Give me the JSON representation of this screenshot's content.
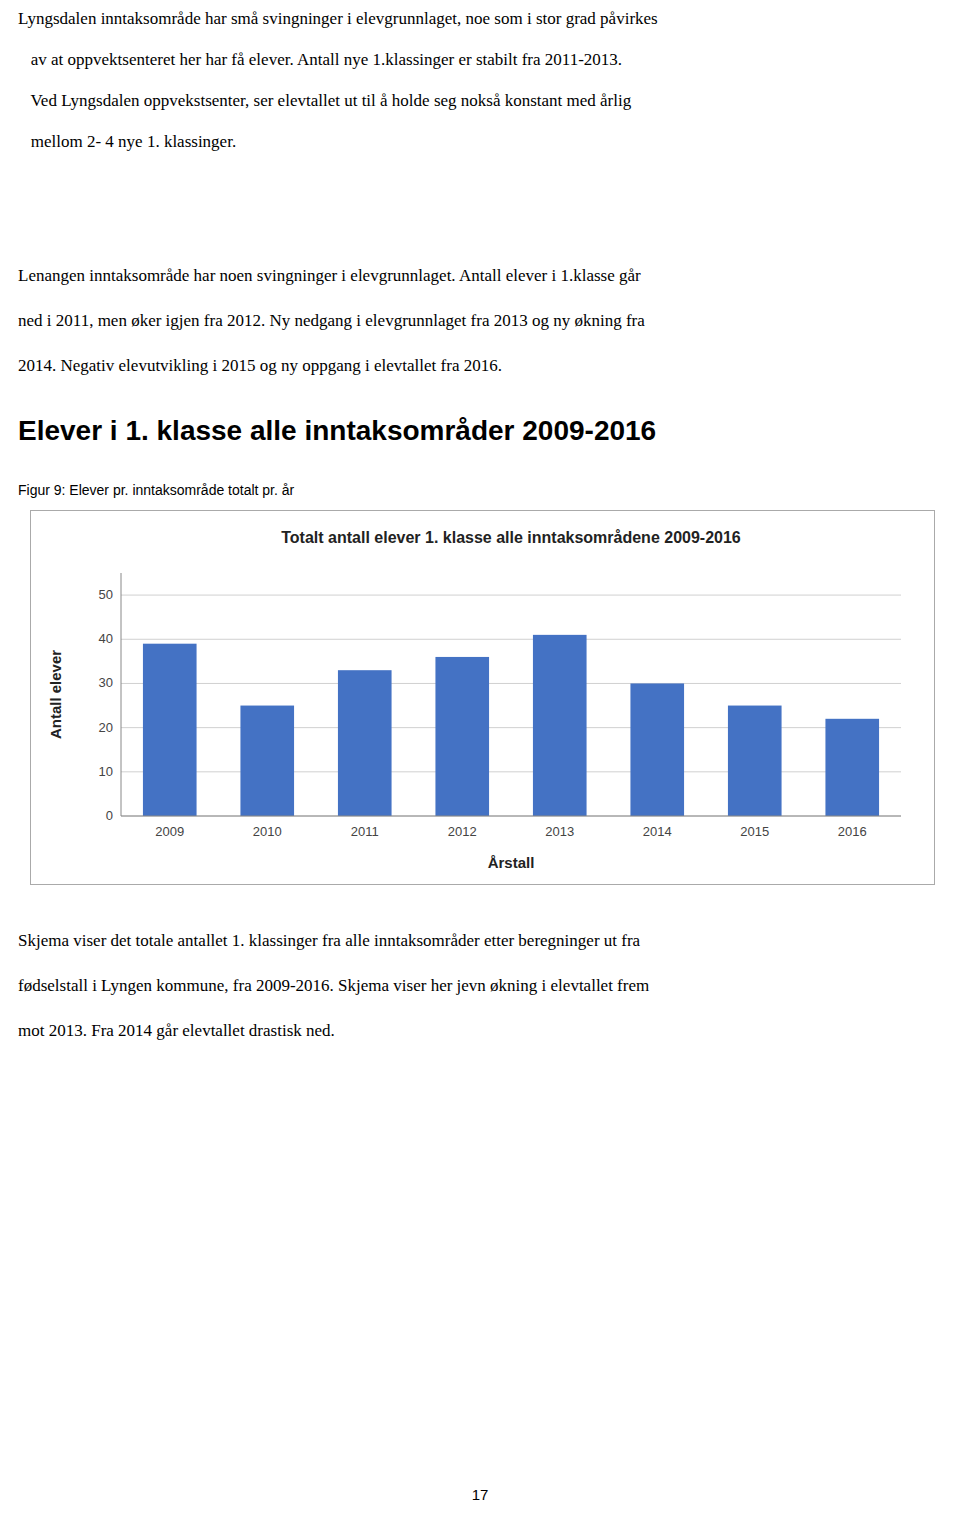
{
  "top_paragraphs": [
    [
      "Lyngsdalen inntaksområde har små svingninger i elevgrunnlaget, noe som i stor grad påvirkes",
      "   av at oppvektsenteret her har få elever. Antall nye 1.klassinger er stabilt fra 2011-2013.",
      "   Ved Lyngsdalen oppvekstsenter, ser elevtallet ut til å holde seg nokså konstant med årlig",
      "   mellom 2- 4 nye 1. klassinger."
    ],
    [
      "Lenangen inntaksområde har noen svingninger i elevgrunnlaget. Antall elever i 1.klasse går",
      "ned i 2011, men øker igjen fra 2012. Ny nedgang i elevgrunnlaget fra 2013 og ny økning fra",
      "2014. Negativ elevutvikling i 2015 og ny oppgang i elevtallet fra 2016."
    ]
  ],
  "heading": "Elever i 1. klasse alle inntaksområder 2009-2016",
  "caption": "Figur 9: Elever pr. inntaksområde totalt pr. år",
  "chart_data": {
    "type": "bar",
    "title": "Totalt antall elever 1. klasse alle inntaksområdene 2009-2016",
    "x_label": "Årstall",
    "y_label": "Antall elever",
    "categories": [
      "2009",
      "2010",
      "2011",
      "2012",
      "2013",
      "2014",
      "2015",
      "2016"
    ],
    "values": [
      39,
      25,
      33,
      36,
      41,
      30,
      25,
      22
    ],
    "color": "#4472C4",
    "ylim": [
      0,
      55
    ],
    "yticks": [
      0,
      10,
      20,
      30,
      40,
      50
    ],
    "grid": true
  },
  "bottom_paragraph": [
    "Skjema viser det totale antallet 1. klassinger fra alle inntaksområder etter beregninger ut fra",
    "fødselstall i Lyngen kommune, fra 2009-2016. Skjema viser her jevn økning i elevtallet frem",
    "mot 2013. Fra 2014 går elevtallet drastisk ned."
  ],
  "page_number": "17"
}
